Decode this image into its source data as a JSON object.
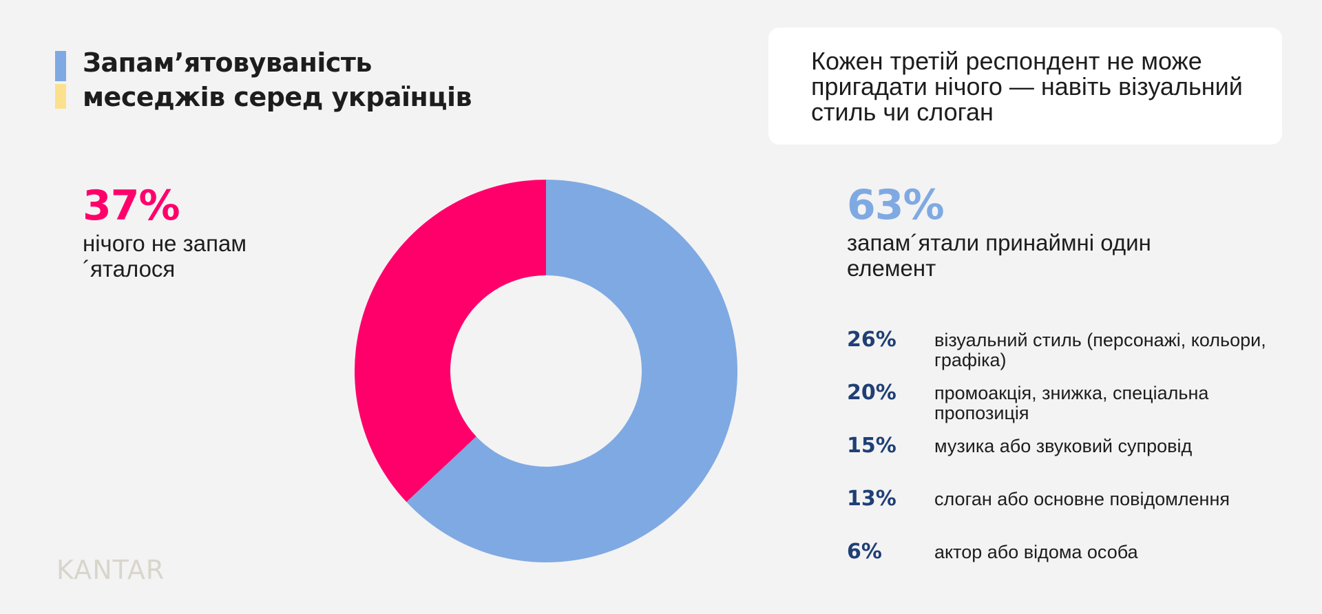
{
  "title_line1": "Запам’ятовуваність",
  "title_line2": "меседжів серед українців",
  "callout_text": "Кожен третій респондент не може пригадати нічого — навіть візуальний стиль чи слоган",
  "logo": "KANTAR",
  "colors": {
    "blue": "#7fa9e2",
    "pink": "#ff006b",
    "navy": "#1f3f75",
    "yellow": "#fbe08e"
  },
  "chart_data": {
    "type": "pie",
    "slices": [
      {
        "label": "запам´ятали принаймні один елемент",
        "value": 63,
        "display": "63%",
        "color": "#7fa9e2"
      },
      {
        "label": "нічого не запам´яталося",
        "value": 37,
        "display": "37%",
        "color": "#ff006b"
      }
    ],
    "breakdown": [
      {
        "value": 26,
        "display": "26%",
        "label": "візуальний стиль (персонажі, кольори, графіка)"
      },
      {
        "value": 20,
        "display": "20%",
        "label": "промоакція, знижка, спеціальна пропозиція"
      },
      {
        "value": 15,
        "display": "15%",
        "label": "музика або звуковий супровід"
      },
      {
        "value": 13,
        "display": "13%",
        "label": "слоган або основне повідомлення"
      },
      {
        "value": 6,
        "display": "6%",
        "label": "актор або відома особа"
      }
    ]
  }
}
